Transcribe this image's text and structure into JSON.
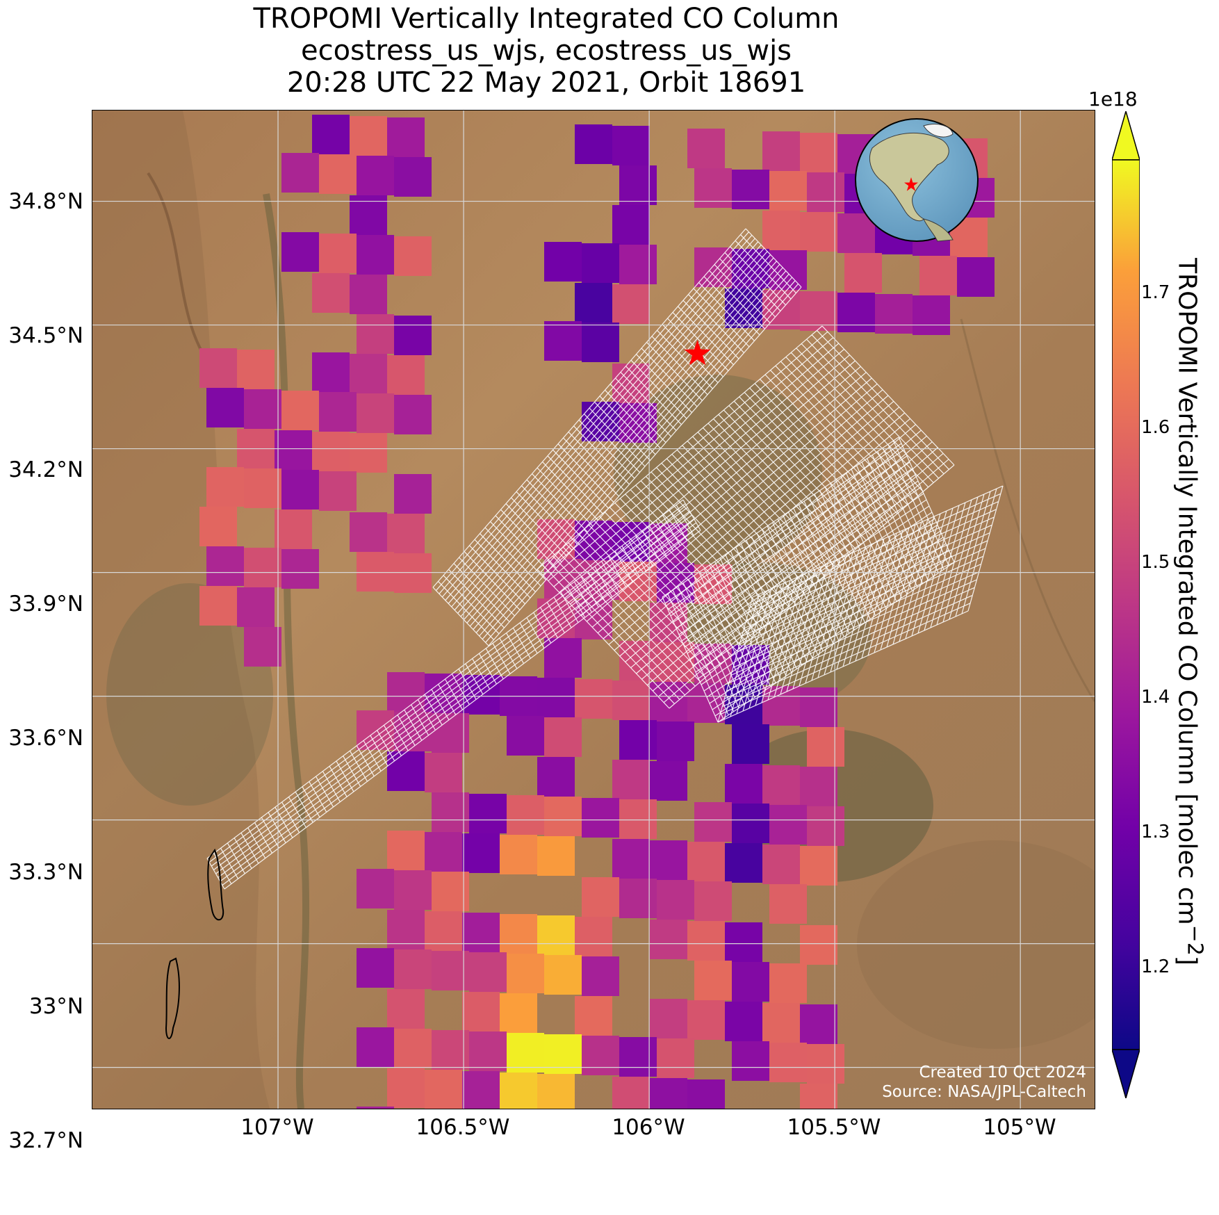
{
  "title": {
    "line1": "TROPOMI Vertically Integrated CO Column",
    "line2": "ecostress_us_wjs, ecostress_us_wjs",
    "line3": "20:28 UTC 22 May 2021, Orbit 18691"
  },
  "map": {
    "extent": {
      "lon": [
        -107.5,
        -104.8
      ],
      "lat": [
        32.6,
        35.02
      ]
    },
    "latitude_ticks": [
      "34.8°N",
      "34.5°N",
      "34.2°N",
      "33.9°N",
      "33.6°N",
      "33.3°N",
      "33°N",
      "32.7°N"
    ],
    "longitude_ticks": [
      "107°W",
      "106.5°W",
      "106°W",
      "105.5°W",
      "105°W"
    ],
    "gridlines": true,
    "basemap": "satellite imagery, desert terrain",
    "target_marker": {
      "lon": -105.87,
      "lat": 34.43,
      "symbol": "red-star"
    },
    "inset": "globe centered on North America with red star marking the site",
    "credit_line1": "Created 10 Oct 2024",
    "credit_line2": "Source: NASA/JPL-Caltech"
  },
  "colorbar": {
    "label": "TROPOMI Vertically Integrated CO Column [molec cm",
    "label_sup": "−2",
    "label_end": "]",
    "exponent": "1e18",
    "min": 1.12,
    "max": 1.78,
    "colormap": "plasma",
    "ticks": [
      "1.2",
      "1.3",
      "1.4",
      "1.5",
      "1.6",
      "1.7"
    ]
  },
  "colors": {
    "plasma_low": "#0d0887",
    "plasma_mid": "#cc4778",
    "plasma_high": "#f0f921",
    "star": "#ff0000"
  }
}
